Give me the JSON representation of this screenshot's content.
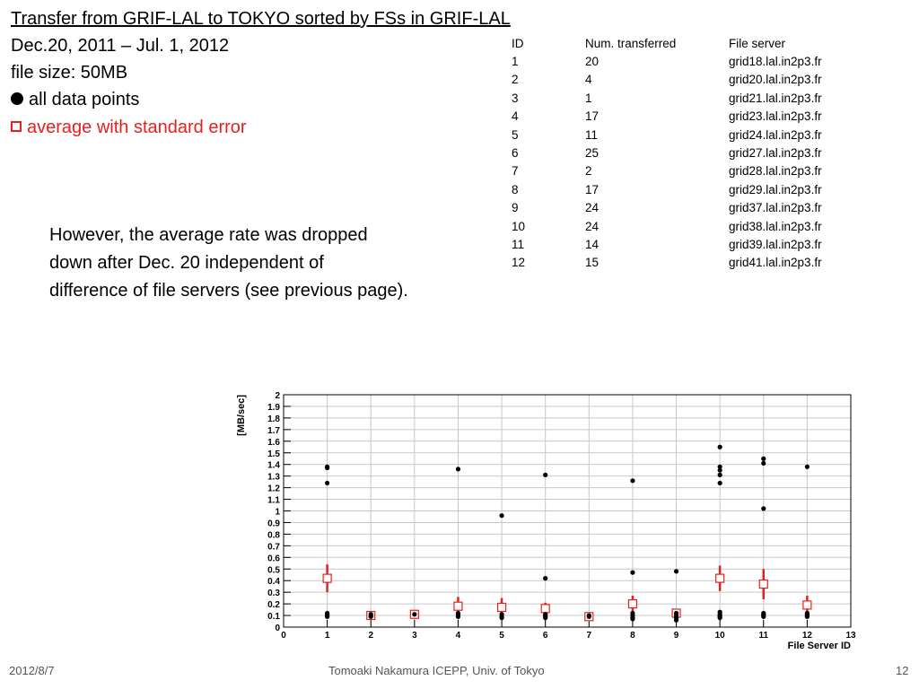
{
  "slide": {
    "title": "Transfer from GRIF-LAL to TOKYO sorted by FSs in GRIF-LAL",
    "date_range": "Dec.20, 2011 – Jul. 1, 2012",
    "file_size": "file size: 50MB",
    "legend_all": "all data points",
    "legend_avg": "average with standard error",
    "note_lines": [
      "However, the average rate was dropped",
      "down after Dec. 20 independent of",
      "difference of file servers (see previous page)."
    ],
    "footer_left": "2012/8/7",
    "footer_center": "Tomoaki Nakamura     ICEPP, Univ. of Tokyo",
    "footer_right": "12"
  },
  "table": {
    "headers": [
      "ID",
      "Num. transferred",
      "File server"
    ],
    "rows": [
      [
        "1",
        "20",
        "grid18.lal.in2p3.fr"
      ],
      [
        "2",
        "4",
        "grid20.lal.in2p3.fr"
      ],
      [
        "3",
        "1",
        "grid21.lal.in2p3.fr"
      ],
      [
        "4",
        "17",
        "grid23.lal.in2p3.fr"
      ],
      [
        "5",
        "11",
        "grid24.lal.in2p3.fr"
      ],
      [
        "6",
        "25",
        "grid27.lal.in2p3.fr"
      ],
      [
        "7",
        "2",
        "grid28.lal.in2p3.fr"
      ],
      [
        "8",
        "17",
        "grid29.lal.in2p3.fr"
      ],
      [
        "9",
        "24",
        "grid37.lal.in2p3.fr"
      ],
      [
        "10",
        "24",
        "grid38.lal.in2p3.fr"
      ],
      [
        "11",
        "14",
        "grid39.lal.in2p3.fr"
      ],
      [
        "12",
        "15",
        "grid41.lal.in2p3.fr"
      ]
    ]
  },
  "colors": {
    "average": "#e8201c",
    "points": "#000000"
  },
  "chart_data": {
    "type": "scatter",
    "xlabel": "File Server ID",
    "ylabel": "[MB/sec]",
    "xlim": [
      0,
      13
    ],
    "ylim": [
      0,
      2
    ],
    "x_ticks": [
      "0",
      "1",
      "2",
      "3",
      "4",
      "5",
      "6",
      "7",
      "8",
      "9",
      "10",
      "11",
      "12",
      "13"
    ],
    "y_ticks": [
      "0",
      "0.1",
      "0.2",
      "0.3",
      "0.4",
      "0.5",
      "0.6",
      "0.7",
      "0.8",
      "0.9",
      "1",
      "1.1",
      "1.2",
      "1.3",
      "1.4",
      "1.5",
      "1.6",
      "1.7",
      "1.8",
      "1.9",
      "2"
    ],
    "grid": true,
    "series": [
      {
        "name": "all data points",
        "marker": "filled-circle",
        "points": [
          [
            1,
            1.38
          ],
          [
            1,
            1.37
          ],
          [
            1,
            1.24
          ],
          [
            1,
            0.12
          ],
          [
            1,
            0.11
          ],
          [
            1,
            0.1
          ],
          [
            1,
            0.09
          ],
          [
            2,
            0.11
          ],
          [
            2,
            0.1
          ],
          [
            2,
            0.09
          ],
          [
            3,
            0.11
          ],
          [
            4,
            1.36
          ],
          [
            4,
            0.12
          ],
          [
            4,
            0.11
          ],
          [
            4,
            0.1
          ],
          [
            4,
            0.09
          ],
          [
            5,
            0.96
          ],
          [
            5,
            0.11
          ],
          [
            5,
            0.09
          ],
          [
            5,
            0.08
          ],
          [
            6,
            1.31
          ],
          [
            6,
            0.42
          ],
          [
            6,
            0.11
          ],
          [
            6,
            0.1
          ],
          [
            6,
            0.09
          ],
          [
            6,
            0.08
          ],
          [
            7,
            0.1
          ],
          [
            7,
            0.09
          ],
          [
            8,
            1.26
          ],
          [
            8,
            0.47
          ],
          [
            8,
            0.12
          ],
          [
            8,
            0.1
          ],
          [
            8,
            0.08
          ],
          [
            8,
            0.07
          ],
          [
            9,
            0.48
          ],
          [
            9,
            0.12
          ],
          [
            9,
            0.1
          ],
          [
            9,
            0.08
          ],
          [
            9,
            0.06
          ],
          [
            10,
            1.55
          ],
          [
            10,
            1.38
          ],
          [
            10,
            1.35
          ],
          [
            10,
            1.31
          ],
          [
            10,
            1.24
          ],
          [
            10,
            0.13
          ],
          [
            10,
            0.11
          ],
          [
            10,
            0.1
          ],
          [
            10,
            0.09
          ],
          [
            10,
            0.08
          ],
          [
            11,
            1.45
          ],
          [
            11,
            1.41
          ],
          [
            11,
            1.02
          ],
          [
            11,
            0.12
          ],
          [
            11,
            0.11
          ],
          [
            11,
            0.1
          ],
          [
            11,
            0.09
          ],
          [
            12,
            1.38
          ],
          [
            12,
            0.12
          ],
          [
            12,
            0.11
          ],
          [
            12,
            0.1
          ],
          [
            12,
            0.09
          ]
        ]
      },
      {
        "name": "average with standard error",
        "marker": "open-square",
        "points": [
          [
            1,
            0.42,
            0.12
          ],
          [
            2,
            0.1,
            0.01
          ],
          [
            3,
            0.11,
            0.0
          ],
          [
            4,
            0.18,
            0.08
          ],
          [
            5,
            0.17,
            0.08
          ],
          [
            6,
            0.16,
            0.05
          ],
          [
            7,
            0.09,
            0.01
          ],
          [
            8,
            0.2,
            0.07
          ],
          [
            9,
            0.12,
            0.03
          ],
          [
            10,
            0.42,
            0.11
          ],
          [
            11,
            0.37,
            0.13
          ],
          [
            12,
            0.19,
            0.08
          ]
        ]
      }
    ]
  }
}
